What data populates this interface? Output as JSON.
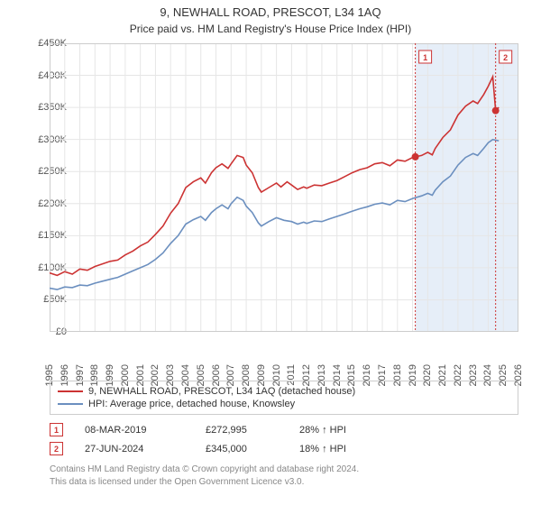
{
  "title": "9, NEWHALL ROAD, PRESCOT, L34 1AQ",
  "subtitle": "Price paid vs. HM Land Registry's House Price Index (HPI)",
  "chart": {
    "type": "line",
    "background_color": "#ffffff",
    "grid_color": "#e6e6e6",
    "border_color": "#cccccc",
    "highlight_band_color": "#e6eef8",
    "highlight_band_x": [
      2019.18,
      2026
    ],
    "marker_line_color": "#cc3333",
    "xlim": [
      1995,
      2026
    ],
    "ylim": [
      0,
      450000
    ],
    "ytick_step": 50000,
    "ytick_prefix": "£",
    "ytick_suffix": "K",
    "xticks": [
      1995,
      1996,
      1997,
      1998,
      1999,
      2000,
      2001,
      2002,
      2003,
      2004,
      2005,
      2006,
      2007,
      2008,
      2009,
      2010,
      2011,
      2012,
      2013,
      2014,
      2015,
      2016,
      2017,
      2018,
      2019,
      2020,
      2021,
      2022,
      2023,
      2024,
      2025,
      2026
    ],
    "label_fontsize": 11,
    "title_fontsize": 13,
    "line_width": 1.6,
    "series": [
      {
        "name": "9, NEWHALL ROAD, PRESCOT, L34 1AQ (detached house)",
        "color": "#cc3333",
        "data": [
          [
            1995,
            92000
          ],
          [
            1995.5,
            88000
          ],
          [
            1996,
            94000
          ],
          [
            1996.5,
            90000
          ],
          [
            1997,
            98000
          ],
          [
            1997.5,
            96000
          ],
          [
            1998,
            102000
          ],
          [
            1998.5,
            106000
          ],
          [
            1999,
            110000
          ],
          [
            1999.5,
            112000
          ],
          [
            2000,
            120000
          ],
          [
            2000.5,
            126000
          ],
          [
            2001,
            134000
          ],
          [
            2001.5,
            140000
          ],
          [
            2002,
            152000
          ],
          [
            2002.5,
            165000
          ],
          [
            2003,
            185000
          ],
          [
            2003.5,
            200000
          ],
          [
            2004,
            225000
          ],
          [
            2004.5,
            234000
          ],
          [
            2005,
            240000
          ],
          [
            2005.3,
            232000
          ],
          [
            2005.7,
            248000
          ],
          [
            2006,
            256000
          ],
          [
            2006.4,
            262000
          ],
          [
            2006.8,
            255000
          ],
          [
            2007,
            262000
          ],
          [
            2007.4,
            275000
          ],
          [
            2007.8,
            272000
          ],
          [
            2008,
            260000
          ],
          [
            2008.4,
            248000
          ],
          [
            2008.8,
            225000
          ],
          [
            2009,
            218000
          ],
          [
            2009.5,
            225000
          ],
          [
            2010,
            232000
          ],
          [
            2010.3,
            226000
          ],
          [
            2010.7,
            234000
          ],
          [
            2011,
            229000
          ],
          [
            2011.4,
            222000
          ],
          [
            2011.8,
            226000
          ],
          [
            2012,
            224000
          ],
          [
            2012.5,
            229000
          ],
          [
            2013,
            228000
          ],
          [
            2013.5,
            232000
          ],
          [
            2014,
            236000
          ],
          [
            2014.5,
            242000
          ],
          [
            2015,
            248000
          ],
          [
            2015.5,
            253000
          ],
          [
            2016,
            256000
          ],
          [
            2016.5,
            262000
          ],
          [
            2017,
            264000
          ],
          [
            2017.5,
            259000
          ],
          [
            2018,
            268000
          ],
          [
            2018.5,
            266000
          ],
          [
            2019,
            272000
          ],
          [
            2019.18,
            272995
          ],
          [
            2019.6,
            275000
          ],
          [
            2020,
            280000
          ],
          [
            2020.3,
            276000
          ],
          [
            2020.5,
            286000
          ],
          [
            2021,
            303000
          ],
          [
            2021.5,
            315000
          ],
          [
            2022,
            338000
          ],
          [
            2022.5,
            352000
          ],
          [
            2023,
            360000
          ],
          [
            2023.3,
            356000
          ],
          [
            2023.7,
            370000
          ],
          [
            2024,
            383000
          ],
          [
            2024.3,
            398000
          ],
          [
            2024.49,
            345000
          ],
          [
            2024.7,
            350000
          ]
        ]
      },
      {
        "name": "HPI: Average price, detached house, Knowsley",
        "color": "#6b8fbf",
        "data": [
          [
            1995,
            68000
          ],
          [
            1995.5,
            66000
          ],
          [
            1996,
            70000
          ],
          [
            1996.5,
            69000
          ],
          [
            1997,
            73000
          ],
          [
            1997.5,
            72000
          ],
          [
            1998,
            76000
          ],
          [
            1998.5,
            79000
          ],
          [
            1999,
            82000
          ],
          [
            1999.5,
            85000
          ],
          [
            2000,
            90000
          ],
          [
            2000.5,
            95000
          ],
          [
            2001,
            100000
          ],
          [
            2001.5,
            105000
          ],
          [
            2002,
            113000
          ],
          [
            2002.5,
            123000
          ],
          [
            2003,
            138000
          ],
          [
            2003.5,
            150000
          ],
          [
            2004,
            168000
          ],
          [
            2004.5,
            175000
          ],
          [
            2005,
            180000
          ],
          [
            2005.3,
            174000
          ],
          [
            2005.7,
            186000
          ],
          [
            2006,
            192000
          ],
          [
            2006.4,
            198000
          ],
          [
            2006.8,
            192000
          ],
          [
            2007,
            200000
          ],
          [
            2007.4,
            210000
          ],
          [
            2007.8,
            205000
          ],
          [
            2008,
            196000
          ],
          [
            2008.4,
            186000
          ],
          [
            2008.8,
            170000
          ],
          [
            2009,
            165000
          ],
          [
            2009.5,
            172000
          ],
          [
            2010,
            178000
          ],
          [
            2010.5,
            174000
          ],
          [
            2011,
            172000
          ],
          [
            2011.4,
            168000
          ],
          [
            2011.8,
            171000
          ],
          [
            2012,
            169000
          ],
          [
            2012.5,
            173000
          ],
          [
            2013,
            172000
          ],
          [
            2013.5,
            176000
          ],
          [
            2014,
            180000
          ],
          [
            2014.5,
            184000
          ],
          [
            2015,
            188000
          ],
          [
            2015.5,
            192000
          ],
          [
            2016,
            195000
          ],
          [
            2016.5,
            199000
          ],
          [
            2017,
            201000
          ],
          [
            2017.5,
            198000
          ],
          [
            2018,
            205000
          ],
          [
            2018.5,
            203000
          ],
          [
            2019,
            208000
          ],
          [
            2019.6,
            212000
          ],
          [
            2020,
            216000
          ],
          [
            2020.3,
            213000
          ],
          [
            2020.5,
            221000
          ],
          [
            2021,
            234000
          ],
          [
            2021.5,
            243000
          ],
          [
            2022,
            260000
          ],
          [
            2022.5,
            272000
          ],
          [
            2023,
            278000
          ],
          [
            2023.3,
            275000
          ],
          [
            2023.7,
            286000
          ],
          [
            2024,
            295000
          ],
          [
            2024.3,
            300000
          ],
          [
            2024.7,
            298000
          ]
        ]
      }
    ],
    "sale_markers": [
      {
        "n": "1",
        "x": 2019.18,
        "y": 272995,
        "box_offset_y": -20
      },
      {
        "n": "2",
        "x": 2024.49,
        "y": 345000,
        "box_offset_y": -20
      }
    ]
  },
  "legend": {
    "items": [
      {
        "label": "9, NEWHALL ROAD, PRESCOT, L34 1AQ (detached house)",
        "color": "#cc3333"
      },
      {
        "label": "HPI: Average price, detached house, Knowsley",
        "color": "#6b8fbf"
      }
    ]
  },
  "sales": [
    {
      "n": "1",
      "date": "08-MAR-2019",
      "price": "£272,995",
      "diff": "28% ↑ HPI",
      "marker_color": "#cc3333"
    },
    {
      "n": "2",
      "date": "27-JUN-2024",
      "price": "£345,000",
      "diff": "18% ↑ HPI",
      "marker_color": "#cc3333"
    }
  ],
  "footer": {
    "line1": "Contains HM Land Registry data © Crown copyright and database right 2024.",
    "line2": "This data is licensed under the Open Government Licence v3.0."
  }
}
